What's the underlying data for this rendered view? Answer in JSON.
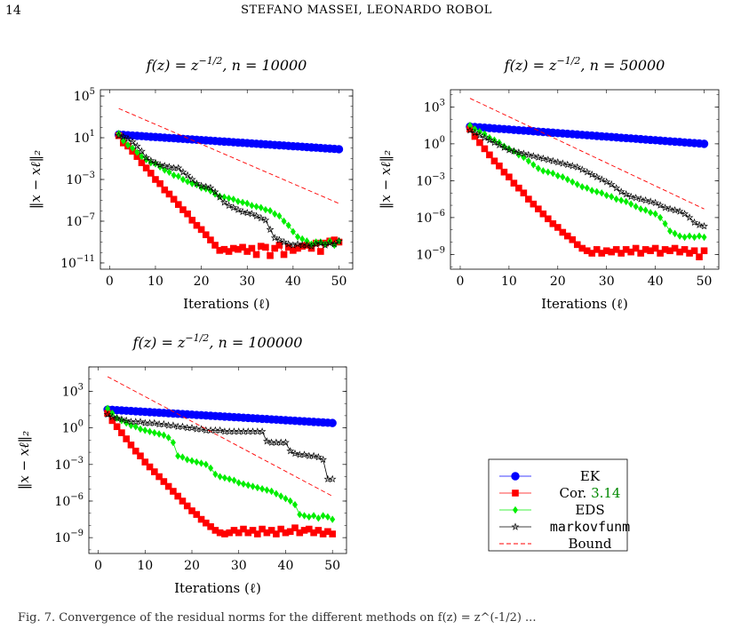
{
  "page": {
    "page_number": "14",
    "running_head": "STEFANO MASSEI, LEONARDO ROBOL",
    "footer_fragment": "Fig. 7.  Convergence of the residual norms for the different methods on f(z) = z^(-1/2) ..."
  },
  "legend": {
    "entries": [
      {
        "label": "EK",
        "color": "#0000ff",
        "marker": "circle"
      },
      {
        "label_prefix": "Cor. ",
        "label_ref": "3.14",
        "ref_color": "#008800",
        "color": "#ff0000",
        "marker": "square"
      },
      {
        "label": "EDS",
        "color": "#00ee00",
        "marker": "diamond"
      },
      {
        "label": "markovfunm",
        "color": "#000000",
        "marker": "star",
        "monospace": true
      },
      {
        "label": "Bound",
        "color": "#ff0000",
        "marker": "dashed"
      }
    ]
  },
  "chart_data": [
    {
      "type": "line",
      "title": "f(z) = z^(-1/2), n = 10000",
      "title_main": "f(z) = z",
      "title_exp": "−1/2",
      "title_suffix": ", n = 10000",
      "xlabel": "Iterations (ℓ)",
      "ylabel": "‖x − xℓ‖₂",
      "y_scale": "log",
      "xlim": [
        -2,
        53
      ],
      "ylim_log10": [
        -11.6,
        5.6
      ],
      "xticks": [
        0,
        10,
        20,
        30,
        40,
        50
      ],
      "yticks_log10": [
        5,
        1,
        -3,
        -7,
        -11
      ],
      "series": [
        {
          "name": "EK",
          "x_start": 2,
          "log10_start": 1.3,
          "log10_end": -0.1
        },
        {
          "name": "Cor. 3.14",
          "x_start": 2,
          "log10": [
            1.2,
            0.5,
            0.2,
            -0.3,
            -0.8,
            -1.4,
            -1.9,
            -2.4,
            -3.0,
            -3.4,
            -4.0,
            -4.4,
            -4.9,
            -5.4,
            -5.9,
            -6.3,
            -6.9,
            -7.4,
            -7.8,
            -8.3,
            -8.8,
            -9.3,
            -9.8,
            -9.7,
            -9.9,
            -9.6,
            -9.7,
            -9.5,
            -9.9,
            -9.6,
            -10.2,
            -9.4,
            -9.5,
            -10.3,
            -9.6,
            -9.3,
            -10.2,
            -9.5,
            -9.8,
            -9.6,
            -9.4,
            -9.3,
            -9.6,
            -9.1,
            -9.9,
            -9.1,
            -8.9,
            -8.8,
            -9.0
          ]
        },
        {
          "name": "EDS",
          "x_start": 2,
          "log10": [
            1.4,
            0.7,
            0.3,
            0.0,
            -0.4,
            -0.8,
            -1.1,
            -1.4,
            -1.5,
            -1.8,
            -2.1,
            -2.3,
            -2.6,
            -2.7,
            -3.0,
            -3.2,
            -3.4,
            -3.5,
            -3.8,
            -3.9,
            -4.1,
            -4.4,
            -4.6,
            -4.7,
            -4.8,
            -4.9,
            -5.1,
            -5.2,
            -5.3,
            -5.5,
            -5.6,
            -5.7,
            -5.9,
            -6.0,
            -6.3,
            -6.5,
            -7.0,
            -7.4,
            -8.0,
            -8.5,
            -8.7,
            -8.9,
            -9.2,
            -9.0,
            -9.0,
            -9.2,
            -8.9,
            -9.3,
            -8.9
          ]
        },
        {
          "name": "markovfunm",
          "x_start": 2,
          "log10": [
            1.2,
            1.1,
            0.9,
            0.6,
            0.2,
            -0.3,
            -0.9,
            -1.2,
            -1.4,
            -1.6,
            -1.7,
            -1.8,
            -1.9,
            -1.9,
            -2.3,
            -2.6,
            -3.0,
            -3.4,
            -3.6,
            -3.7,
            -3.8,
            -4.2,
            -4.7,
            -5.2,
            -5.5,
            -5.7,
            -5.9,
            -6.1,
            -6.2,
            -6.3,
            -6.5,
            -6.7,
            -6.9,
            -7.8,
            -8.6,
            -8.8,
            -9.0,
            -9.2,
            -9.3,
            -9.2,
            -9.3,
            -9.3,
            -9.4,
            -9.2,
            -9.1,
            -9.3,
            -9.1,
            -9.2,
            -8.9
          ]
        },
        {
          "name": "Bound",
          "x": [
            2,
            50
          ],
          "log10": [
            3.8,
            -5.3
          ]
        }
      ]
    },
    {
      "type": "line",
      "title": "f(z) = z^(-1/2), n = 50000",
      "title_main": "f(z) = z",
      "title_exp": "−1/2",
      "title_suffix": ", n = 50000",
      "xlabel": "Iterations (ℓ)",
      "ylabel": "‖x − xℓ‖₂",
      "y_scale": "log",
      "xlim": [
        -2,
        53
      ],
      "ylim_log10": [
        -10.2,
        4.4
      ],
      "xticks": [
        0,
        10,
        20,
        30,
        40,
        50
      ],
      "yticks_log10": [
        3,
        0,
        -3,
        -6,
        -9
      ],
      "series": [
        {
          "name": "EK",
          "x_start": 2,
          "log10_start": 1.4,
          "log10_end": 0.0
        },
        {
          "name": "Cor. 3.14",
          "x_start": 2,
          "log10": [
            1.2,
            0.6,
            0.1,
            -0.4,
            -0.9,
            -1.4,
            -1.8,
            -2.3,
            -2.7,
            -3.2,
            -3.6,
            -4.0,
            -4.5,
            -4.9,
            -5.3,
            -5.7,
            -6.1,
            -6.5,
            -6.8,
            -7.2,
            -7.5,
            -7.8,
            -8.2,
            -8.5,
            -8.7,
            -8.9,
            -8.6,
            -8.9,
            -8.7,
            -8.8,
            -8.6,
            -8.9,
            -8.6,
            -8.8,
            -8.5,
            -8.9,
            -8.6,
            -8.7,
            -8.5,
            -8.9,
            -8.6,
            -8.7,
            -8.5,
            -8.8,
            -8.6,
            -8.9,
            -8.7,
            -9.2,
            -8.7
          ]
        },
        {
          "name": "EDS",
          "x_start": 2,
          "log10": [
            1.5,
            1.2,
            1.0,
            0.8,
            0.5,
            0.3,
            0.1,
            -0.2,
            -0.4,
            -0.6,
            -0.9,
            -1.1,
            -1.4,
            -1.7,
            -2.0,
            -2.2,
            -2.3,
            -2.4,
            -2.6,
            -2.7,
            -2.9,
            -3.1,
            -3.3,
            -3.5,
            -3.6,
            -3.8,
            -3.9,
            -4.0,
            -4.2,
            -4.3,
            -4.5,
            -4.6,
            -4.7,
            -4.9,
            -5.1,
            -5.3,
            -5.4,
            -5.6,
            -5.7,
            -6.0,
            -6.5,
            -7.1,
            -7.3,
            -7.5,
            -7.6,
            -7.5,
            -7.6,
            -7.5,
            -7.6
          ]
        },
        {
          "name": "markovfunm",
          "x_start": 2,
          "log10": [
            1.1,
            0.9,
            0.7,
            0.5,
            0.3,
            0.1,
            -0.1,
            -0.3,
            -0.5,
            -0.6,
            -0.7,
            -0.8,
            -0.9,
            -1.0,
            -1.1,
            -1.2,
            -1.3,
            -1.4,
            -1.5,
            -1.6,
            -1.7,
            -1.8,
            -1.9,
            -2.1,
            -2.3,
            -2.5,
            -2.7,
            -2.9,
            -3.1,
            -3.3,
            -3.6,
            -3.9,
            -4.1,
            -4.3,
            -4.4,
            -4.5,
            -4.6,
            -4.7,
            -4.8,
            -5.0,
            -5.2,
            -5.3,
            -5.4,
            -5.5,
            -5.7,
            -6.0,
            -6.4,
            -6.6,
            -6.7
          ]
        },
        {
          "name": "Bound",
          "x": [
            2,
            50
          ],
          "log10": [
            3.7,
            -5.3
          ]
        }
      ]
    },
    {
      "type": "line",
      "title": "f(z) = z^(-1/2), n = 100000",
      "title_main": "f(z) = z",
      "title_exp": "−1/2",
      "title_suffix": ", n = 100000",
      "xlabel": "Iterations (ℓ)",
      "ylabel": "‖x − xℓ‖₂",
      "y_scale": "log",
      "xlim": [
        -2,
        53
      ],
      "ylim_log10": [
        -10.3,
        5.0
      ],
      "xticks": [
        0,
        10,
        20,
        30,
        40,
        50
      ],
      "yticks_log10": [
        3,
        0,
        -3,
        -6,
        -9
      ],
      "series": [
        {
          "name": "EK",
          "x_start": 2,
          "log10_start": 1.5,
          "log10_end": 0.4
        },
        {
          "name": "Cor. 3.14",
          "x_start": 2,
          "log10": [
            1.2,
            0.6,
            0.1,
            -0.4,
            -0.9,
            -1.4,
            -1.9,
            -2.3,
            -2.8,
            -3.2,
            -3.6,
            -4.0,
            -4.4,
            -4.8,
            -5.2,
            -5.6,
            -6.0,
            -6.4,
            -6.8,
            -7.1,
            -7.5,
            -7.8,
            -8.1,
            -8.4,
            -8.6,
            -8.7,
            -8.6,
            -8.4,
            -8.6,
            -8.3,
            -8.6,
            -8.4,
            -8.7,
            -8.3,
            -8.6,
            -8.4,
            -8.7,
            -8.3,
            -8.6,
            -8.5,
            -8.2,
            -8.6,
            -8.4,
            -8.3,
            -8.6,
            -8.4,
            -8.7,
            -8.5,
            -8.7
          ]
        },
        {
          "name": "EDS",
          "x_start": 2,
          "log10": [
            1.6,
            1.2,
            0.8,
            0.6,
            0.4,
            0.2,
            0.1,
            -0.1,
            -0.2,
            -0.3,
            -0.4,
            -0.5,
            -0.6,
            -0.8,
            -1.2,
            -2.3,
            -2.4,
            -2.6,
            -2.7,
            -2.8,
            -2.9,
            -3.0,
            -3.3,
            -3.8,
            -4.0,
            -4.1,
            -4.2,
            -4.3,
            -4.5,
            -4.6,
            -4.7,
            -4.8,
            -4.9,
            -5.0,
            -5.1,
            -5.2,
            -5.4,
            -5.6,
            -5.8,
            -6.0,
            -6.3,
            -7.1,
            -7.2,
            -7.3,
            -7.2,
            -7.4,
            -7.2,
            -7.3,
            -7.5
          ]
        },
        {
          "name": "markovfunm",
          "x_start": 2,
          "log10": [
            1.1,
            0.9,
            0.8,
            0.7,
            0.6,
            0.5,
            0.5,
            0.5,
            0.4,
            0.4,
            0.4,
            0.3,
            0.3,
            0.2,
            0.2,
            0.1,
            0.1,
            0.0,
            0.0,
            -0.1,
            -0.1,
            -0.2,
            -0.2,
            -0.2,
            -0.2,
            -0.3,
            -0.3,
            -0.3,
            -0.3,
            -0.3,
            -0.3,
            -0.3,
            -0.3,
            -0.3,
            -1.1,
            -1.2,
            -1.2,
            -1.2,
            -1.2,
            -1.9,
            -2.1,
            -2.2,
            -2.2,
            -2.3,
            -2.3,
            -2.4,
            -2.6,
            -4.2,
            -4.2
          ]
        },
        {
          "name": "Bound",
          "x": [
            2,
            50
          ],
          "log10": [
            4.2,
            -5.6
          ]
        }
      ]
    }
  ]
}
